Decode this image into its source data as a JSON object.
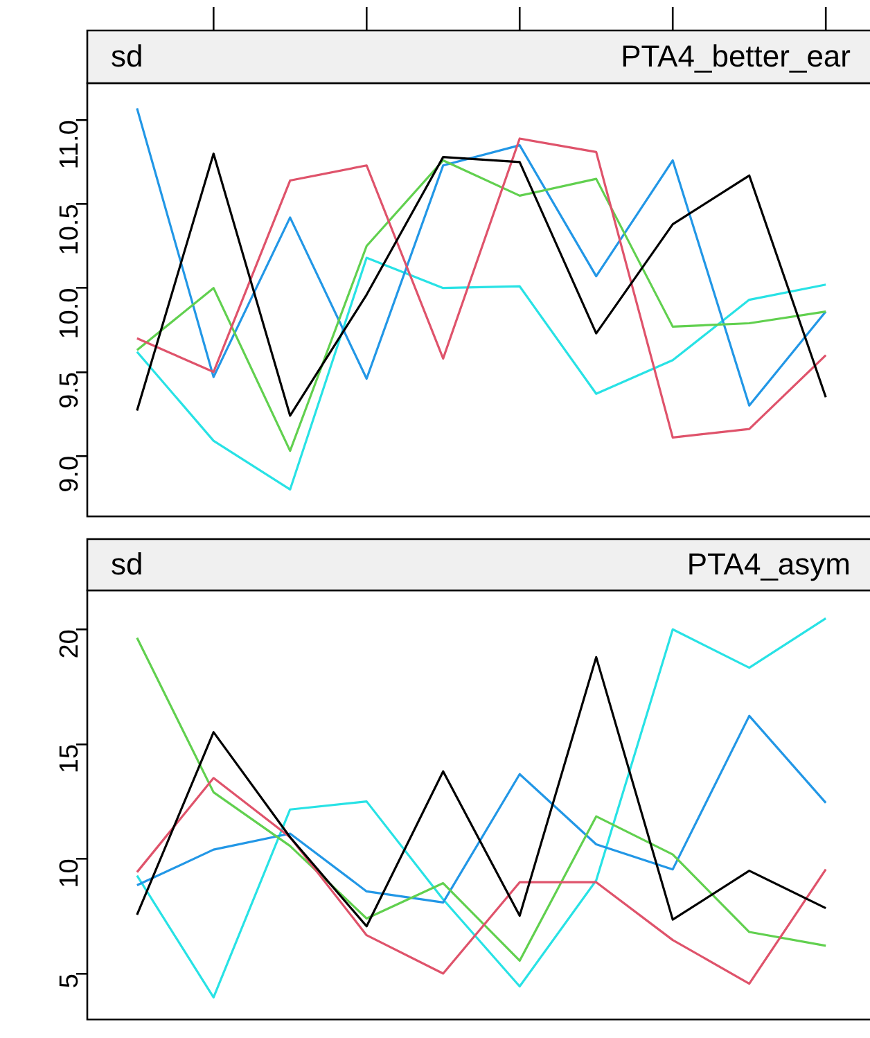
{
  "chart_data": [
    {
      "type": "line",
      "title": "PTA4_better_ear",
      "subtitle": "sd",
      "categories": [
        null,
        null,
        null,
        null,
        null,
        null,
        null,
        null,
        null,
        null
      ],
      "ylim": [
        8.64,
        11.22
      ],
      "yticks": [
        {
          "value": 9,
          "label": "9.0"
        },
        {
          "value": 9.5,
          "label": "9.5"
        },
        {
          "value": 10,
          "label": "10.0"
        },
        {
          "value": 10.5,
          "label": "10.5"
        },
        {
          "value": 11,
          "label": "11.0"
        }
      ],
      "tick_labels": "y",
      "grid": false,
      "series": [
        {
          "color": "#000000",
          "values": [
            9.27,
            10.8,
            9.24,
            9.96,
            10.78,
            10.75,
            9.73,
            10.38,
            10.67,
            9.35
          ]
        },
        {
          "color": "#df536b",
          "values": [
            9.7,
            9.5,
            10.64,
            10.73,
            9.58,
            10.89,
            10.81,
            9.11,
            9.16,
            9.6
          ]
        },
        {
          "color": "#61d04f",
          "values": [
            9.63,
            10.0,
            9.03,
            10.25,
            10.76,
            10.55,
            10.65,
            9.77,
            9.79,
            9.86
          ]
        },
        {
          "color": "#2297e6",
          "values": [
            11.07,
            9.47,
            10.42,
            9.46,
            10.73,
            10.85,
            10.07,
            10.76,
            9.3,
            9.86
          ]
        },
        {
          "color": "#28e2e5",
          "values": [
            9.62,
            9.09,
            8.8,
            10.18,
            10.0,
            10.01,
            9.37,
            9.57,
            9.93,
            10.02
          ]
        }
      ]
    },
    {
      "type": "line",
      "title": "PTA4_asym",
      "subtitle": "sd",
      "categories": [
        null,
        null,
        null,
        null,
        null,
        null,
        null,
        null,
        null,
        null
      ],
      "ylim": [
        3,
        21.7
      ],
      "yticks": [
        5,
        10,
        15,
        20
      ],
      "tick_labels": "y",
      "grid": false,
      "series": [
        {
          "color": "#000000",
          "values": [
            7.56,
            15.52,
            10.94,
            7.06,
            13.81,
            7.52,
            18.79,
            7.35,
            9.48,
            7.85
          ]
        },
        {
          "color": "#df536b",
          "values": [
            9.42,
            13.52,
            10.94,
            6.67,
            5.0,
            8.98,
            8.98,
            6.46,
            4.56,
            9.54
          ]
        },
        {
          "color": "#61d04f",
          "values": [
            19.63,
            12.9,
            10.56,
            7.4,
            8.94,
            5.56,
            11.85,
            10.19,
            6.81,
            6.21
          ]
        },
        {
          "color": "#2297e6",
          "values": [
            8.85,
            10.4,
            11.1,
            8.58,
            8.1,
            13.69,
            10.63,
            9.54,
            16.23,
            12.44
          ]
        },
        {
          "color": "#28e2e5",
          "values": [
            9.27,
            3.96,
            12.15,
            12.5,
            8.23,
            4.44,
            9.06,
            20.0,
            18.33,
            20.48
          ]
        }
      ]
    }
  ]
}
